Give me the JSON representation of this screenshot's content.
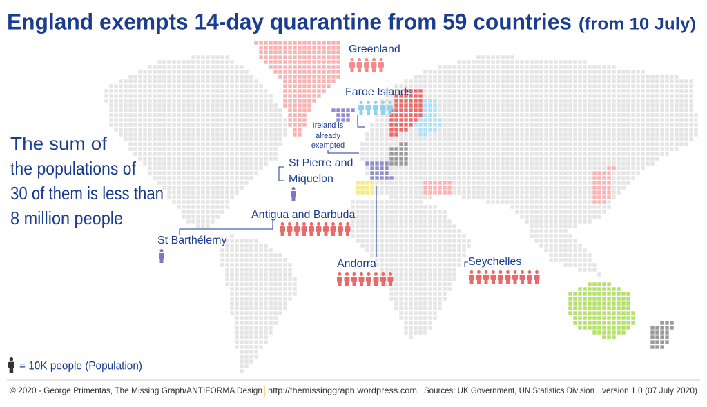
{
  "title": "England exempts 14-day quarantine from 59 countries",
  "title_note": "(from 10 July)",
  "statement": [
    "The sum of",
    "the populations of",
    "30 of them is less than",
    "8 million people"
  ],
  "ireland_note": [
    "Ireland is",
    "already",
    "exempted"
  ],
  "labels": [
    {
      "lines": [
        "Greenland"
      ],
      "icons": 5,
      "color": "#f28b8b"
    },
    {
      "lines": [
        "Faroe Islands"
      ],
      "icons": 5,
      "color": "#8fd3f2"
    },
    {
      "lines": [
        "Antigua and Barbuda"
      ],
      "icons": 10,
      "color": "#e86a6a"
    },
    {
      "lines": [
        "Andorra"
      ],
      "icons": 8,
      "color": "#e86a6a"
    },
    {
      "lines": [
        "Seychelles"
      ],
      "icons": 10,
      "color": "#e86a6a"
    },
    {
      "lines": [
        "St Pierre and",
        "Miquelon"
      ],
      "icons": 1,
      "color": "#7b78c2"
    },
    {
      "lines": [
        "St Barthélemy"
      ],
      "icons": 1,
      "color": "#7b78c2"
    }
  ],
  "legend": "= 10K people (Population)",
  "footer": {
    "credit": "© 2020 - George Primentas, The Missing Graph/ANTIFORMA Design",
    "url": "http://themissinggraph.wordpress.com",
    "sources": "Sources:  UK Government, UN Statistics Division",
    "version": "version 1.0 (07 July 2020)"
  }
}
